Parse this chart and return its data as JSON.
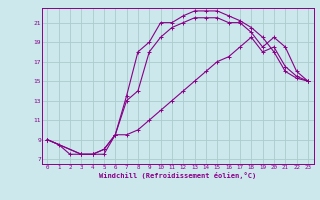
{
  "xlabel": "Windchill (Refroidissement éolien,°C)",
  "bg_color": "#cce8ec",
  "grid_color": "#aacccc",
  "line_color": "#880088",
  "xlim": [
    -0.5,
    23.5
  ],
  "ylim": [
    6.5,
    22.5
  ],
  "xticks": [
    0,
    1,
    2,
    3,
    4,
    5,
    6,
    7,
    8,
    9,
    10,
    11,
    12,
    13,
    14,
    15,
    16,
    17,
    18,
    19,
    20,
    21,
    22,
    23
  ],
  "yticks": [
    7,
    9,
    11,
    13,
    15,
    17,
    19,
    21
  ],
  "curve1_x": [
    0,
    1,
    2,
    3,
    4,
    5,
    6,
    7,
    8,
    9,
    10,
    11,
    12,
    13,
    14,
    15,
    16,
    17,
    18,
    19,
    20,
    21,
    22,
    23
  ],
  "curve1_y": [
    9,
    8.5,
    7.5,
    7.5,
    7.5,
    7.5,
    9.5,
    13.5,
    18,
    19,
    21,
    21,
    21.7,
    22.2,
    22.2,
    22.2,
    21.7,
    21.2,
    20.5,
    19.5,
    18,
    16,
    15.3,
    15
  ],
  "curve2_x": [
    0,
    3,
    4,
    5,
    6,
    7,
    8,
    9,
    10,
    11,
    12,
    13,
    14,
    15,
    16,
    17,
    18,
    19,
    20,
    21,
    22,
    23
  ],
  "curve2_y": [
    9,
    7.5,
    7.5,
    8,
    9.5,
    13,
    14,
    18,
    19.5,
    20.5,
    21,
    21.5,
    21.5,
    21.5,
    21,
    21,
    20,
    18.5,
    19.5,
    18.5,
    16,
    15
  ],
  "curve3_x": [
    0,
    3,
    4,
    5,
    6,
    7,
    8,
    9,
    10,
    11,
    12,
    13,
    14,
    15,
    16,
    17,
    18,
    19,
    20,
    21,
    22,
    23
  ],
  "curve3_y": [
    9,
    7.5,
    7.5,
    8,
    9.5,
    9.5,
    10,
    11,
    12,
    13,
    14,
    15,
    16,
    17,
    17.5,
    18.5,
    19.5,
    18,
    18.5,
    16.5,
    15.5,
    15
  ]
}
